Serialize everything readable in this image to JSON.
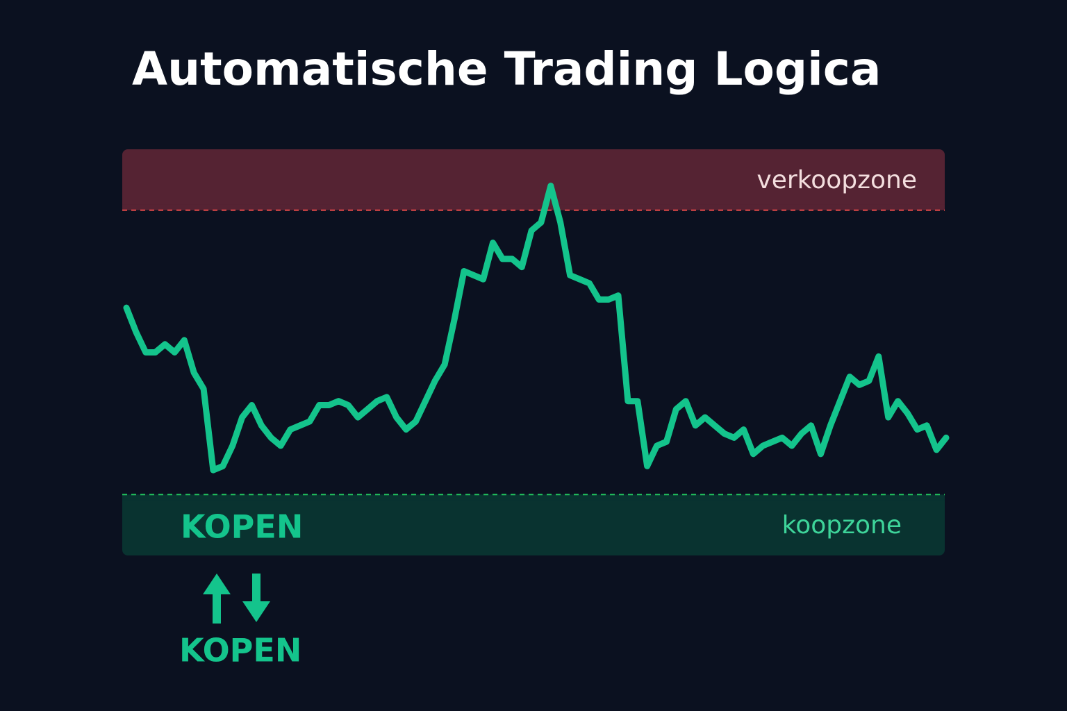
{
  "chart_data": {
    "type": "line",
    "title": "Automatische Trading Logica",
    "values": [
      61,
      55,
      50,
      50,
      52,
      50,
      53,
      45,
      41,
      21,
      22,
      27,
      34,
      37,
      32,
      29,
      27,
      31,
      32,
      33,
      37,
      37,
      38,
      37,
      34,
      36,
      38,
      39,
      34,
      31,
      33,
      38,
      43,
      47,
      58,
      70,
      69,
      68,
      77,
      73,
      73,
      71,
      80,
      82,
      91,
      82,
      69,
      68,
      67,
      63,
      63,
      64,
      38,
      38,
      22,
      27,
      28,
      36,
      38,
      32,
      34,
      32,
      30,
      29,
      31,
      25,
      27,
      28,
      29,
      27,
      30,
      32,
      25,
      32,
      38,
      44,
      42,
      43,
      49,
      34,
      38,
      35,
      31,
      32,
      26,
      29
    ],
    "color": "#14c48c",
    "ylim": [
      0,
      100
    ],
    "sell_level": 85,
    "buy_level": 15,
    "sell_zone_label": "verkoopzone",
    "buy_zone_label": "koopzone",
    "buy_zone_signal": "KOPEN",
    "signal_label": "KOPEN"
  }
}
